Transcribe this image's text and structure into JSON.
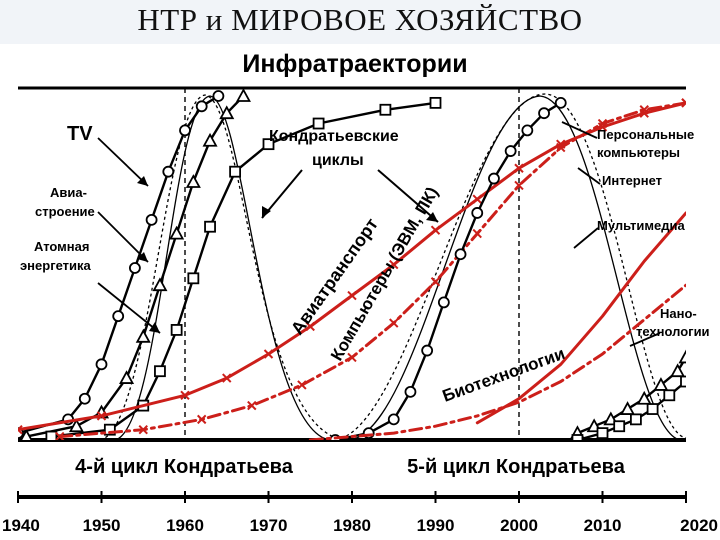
{
  "slide": {
    "title": "НТР и МИРОВОЕ ХОЗЯЙСТВО"
  },
  "chart_data": {
    "type": "line",
    "title": "Инфратраектории",
    "xlim": [
      1940,
      2020
    ],
    "x_ticks": [
      "1940",
      "1950",
      "1960",
      "1970",
      "1980",
      "1990",
      "2000",
      "2010",
      "2020"
    ],
    "cycle_labels": [
      "4-й цикл Кондратьева",
      "5-й цикл Кондратьева"
    ],
    "cycle_boundaries": [
      1960,
      2000
    ],
    "kondratiev_label": "Кондратьевские циклы",
    "colors": {
      "black": "#000000",
      "red": "#cc1f1a"
    },
    "series": [
      {
        "name": "TV",
        "color": "#000000",
        "marker": "circle",
        "style": "solid",
        "x": [
          1940,
          1946,
          1948,
          1950,
          1952,
          1954,
          1956,
          1958,
          1960,
          1962,
          1964
        ],
        "y": [
          0.02,
          0.06,
          0.12,
          0.22,
          0.36,
          0.5,
          0.64,
          0.78,
          0.9,
          0.97,
          1.0
        ]
      },
      {
        "name": "Авиа-строение",
        "color": "#000000",
        "marker": "triangle",
        "style": "solid",
        "x": [
          1941,
          1947,
          1950,
          1953,
          1955,
          1957,
          1959,
          1961,
          1963,
          1965,
          1967
        ],
        "y": [
          0.01,
          0.04,
          0.08,
          0.18,
          0.3,
          0.45,
          0.6,
          0.75,
          0.87,
          0.95,
          1.0
        ]
      },
      {
        "name": "Атомная энергетика",
        "color": "#000000",
        "marker": "square",
        "style": "solid",
        "x": [
          1944,
          1951,
          1955,
          1957,
          1959,
          1961,
          1963,
          1966,
          1970,
          1976,
          1984,
          1990
        ],
        "y": [
          0.01,
          0.03,
          0.1,
          0.2,
          0.32,
          0.47,
          0.62,
          0.78,
          0.86,
          0.92,
          0.96,
          0.98
        ]
      },
      {
        "name": "Авиатранспорт",
        "color": "#cc1f1a",
        "marker": "x",
        "style": "solid",
        "x": [
          1940,
          1950,
          1960,
          1965,
          1970,
          1975,
          1980,
          1985,
          1990,
          1995,
          2000,
          2005,
          2010,
          2015,
          2020
        ],
        "y": [
          0.03,
          0.07,
          0.13,
          0.18,
          0.25,
          0.33,
          0.42,
          0.51,
          0.61,
          0.7,
          0.79,
          0.86,
          0.91,
          0.95,
          0.98
        ]
      },
      {
        "name": "Компьютеры (ЭВМ, ПК)",
        "color": "#cc1f1a",
        "marker": "x",
        "style": "dashdot",
        "x": [
          1945,
          1955,
          1962,
          1968,
          1974,
          1980,
          1985,
          1990,
          1995,
          2000,
          2005,
          2010,
          2015,
          2020
        ],
        "y": [
          0.01,
          0.03,
          0.06,
          0.1,
          0.16,
          0.24,
          0.34,
          0.46,
          0.6,
          0.74,
          0.85,
          0.92,
          0.96,
          0.98
        ]
      },
      {
        "name": "Персональные компьютеры",
        "color": "#000000",
        "marker": "circle",
        "style": "solid",
        "x": [
          1978,
          1982,
          1985,
          1987,
          1989,
          1991,
          1993,
          1995,
          1997,
          1999,
          2001,
          2003,
          2005
        ],
        "y": [
          0.0,
          0.02,
          0.06,
          0.14,
          0.26,
          0.4,
          0.54,
          0.66,
          0.76,
          0.84,
          0.9,
          0.95,
          0.98
        ]
      },
      {
        "name": "Биотехнологии",
        "color": "#cc1f1a",
        "marker": "none",
        "style": "dashdot",
        "x": [
          1975,
          1985,
          1990,
          1995,
          2000,
          2005,
          2010,
          2015,
          2020
        ],
        "y": [
          0.0,
          0.02,
          0.04,
          0.07,
          0.11,
          0.17,
          0.25,
          0.35,
          0.45
        ]
      },
      {
        "name": "Мультимедиа",
        "color": "#cc1f1a",
        "marker": "none",
        "style": "solid",
        "x": [
          1995,
          2000,
          2005,
          2010,
          2015,
          2020
        ],
        "y": [
          0.05,
          0.12,
          0.22,
          0.36,
          0.52,
          0.66
        ]
      },
      {
        "name": "Нано-технологии",
        "color": "#000000",
        "marker": "triangle",
        "style": "solid",
        "x": [
          2007,
          2009,
          2011,
          2013,
          2015,
          2017,
          2019,
          2020
        ],
        "y": [
          0.02,
          0.04,
          0.06,
          0.09,
          0.12,
          0.16,
          0.2,
          0.24
        ]
      },
      {
        "name": "Интернет",
        "color": "#000000",
        "marker": "square",
        "style": "solid",
        "x": [
          2007,
          2010,
          2012,
          2014,
          2016,
          2018,
          2020
        ],
        "y": [
          0.0,
          0.02,
          0.04,
          0.06,
          0.09,
          0.13,
          0.17
        ]
      }
    ],
    "rotated_labels": [
      "Авиатранспорт",
      "Компьютеры (ЭВМ, ПК)",
      "Биотехнологии"
    ],
    "side_labels": {
      "tv": "TV",
      "avia1": "Авиа-",
      "avia2": "строение",
      "atom1": "Атомная",
      "atom2": "энергетика",
      "kond1": "Кондратьевские",
      "kond2": "циклы",
      "pc1": "Персональные",
      "pc2": "компьютеры",
      "internet": "Интернет",
      "multimedia": "Мультимедиа",
      "nano1": "Нано-",
      "nano2": "технологии"
    }
  }
}
